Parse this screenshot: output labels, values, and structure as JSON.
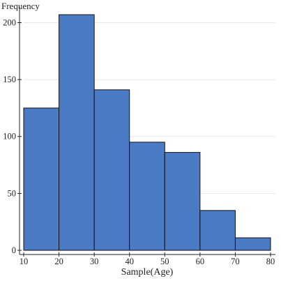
{
  "chart_data": {
    "type": "bar",
    "ylabel": "Frequency",
    "xlabel": "Sample(Age)",
    "bins": [
      {
        "start": 10,
        "end": 20,
        "count": 125
      },
      {
        "start": 20,
        "end": 30,
        "count": 207
      },
      {
        "start": 30,
        "end": 40,
        "count": 141
      },
      {
        "start": 40,
        "end": 50,
        "count": 95
      },
      {
        "start": 50,
        "end": 60,
        "count": 86
      },
      {
        "start": 60,
        "end": 70,
        "count": 35
      },
      {
        "start": 70,
        "end": 80,
        "count": 11
      }
    ],
    "xticks": [
      10,
      20,
      30,
      40,
      50,
      60,
      70,
      80
    ],
    "yticks": [
      0,
      50,
      100,
      150,
      200
    ],
    "xlim": [
      10,
      80
    ],
    "ylim": [
      0,
      215
    ],
    "grid": "horizontal",
    "bar_color": "#4a7bc4",
    "bar_edge_color": "#111111"
  }
}
